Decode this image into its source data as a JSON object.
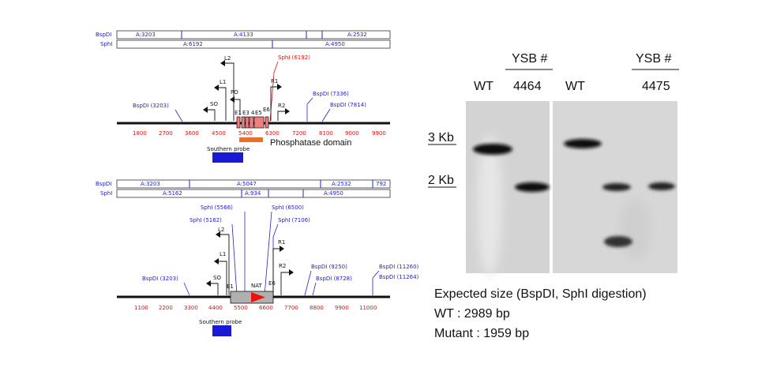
{
  "map_top": {
    "enzyme_labels": [
      "BspDI",
      "SphI"
    ],
    "bspdi_fragments": [
      "A:3203",
      "A:4133",
      "A:2532"
    ],
    "sphi_fragments": [
      "A:6192",
      "A:4950"
    ],
    "ruler": [
      "1800",
      "2700",
      "3600",
      "4500",
      "5400",
      "6300",
      "7200",
      "8100",
      "9000",
      "9900"
    ],
    "sites": {
      "bspdi_left": "BspDI (3203)",
      "sphi": "SphI (6192)",
      "bspdi_r1": "BspDI (7336)",
      "bspdi_r2": "BspDI (7814)"
    },
    "primers": {
      "l2": "L2",
      "l1": "L1",
      "so": "SO",
      "po": "PO",
      "r1": "R1",
      "r2": "R2"
    },
    "exons": {
      "e1": "E1",
      "e3": "E3",
      "e4": "4",
      "e5": "E5",
      "e6": "E6"
    },
    "domain_label": "Phosphatase domain",
    "probe_label": "Southern probe"
  },
  "map_bottom": {
    "enzyme_labels": [
      "BspDI",
      "SphI"
    ],
    "bspdi_fragments": [
      "A:3203",
      "A:5047",
      "A:2532",
      "792"
    ],
    "sphi_fragments": [
      "A:5162",
      "A:934",
      "A:4950"
    ],
    "ruler": [
      "1100",
      "2200",
      "3300",
      "4400",
      "5500",
      "6600",
      "7700",
      "8800",
      "9900",
      "11000"
    ],
    "sites": {
      "bspdi_left": "BspDI (3203)",
      "sphi_5566": "SphI (5566)",
      "sphi_5162": "SphI (5162)",
      "sphi_6500": "SphI (6500)",
      "sphi_7106": "SphI (7106)",
      "bspdi_9250": "BspDI (9250)",
      "bspdi_8728": "BspDI (8728)",
      "bspdi_11260": "BspDI (11260)",
      "bspdi_11264": "BspDI (11264)"
    },
    "primers": {
      "l2": "L2",
      "l1": "L1",
      "so": "SO",
      "r1": "R1",
      "r2": "R2"
    },
    "exons": {
      "e1": "E1",
      "e6": "E6"
    },
    "nat_label": "NAT",
    "probe_label": "Southern probe"
  },
  "blot": {
    "ysb_label_1": "YSB #",
    "ysb_label_2": "YSB #",
    "lanes": [
      "WT",
      "4464",
      "WT",
      "4475"
    ],
    "marker_3kb": "3 Kb",
    "marker_2kb": "2 Kb"
  },
  "expected": {
    "line1": "Expected size (BspDI, SphI digestion)",
    "line2": "WT : 2989 bp",
    "line3": "Mutant : 1959 bp"
  },
  "colors": {
    "blue": "#2222cc",
    "red": "#dd1111",
    "probe": "#1a1ad6",
    "domain": "#e8702a",
    "exon": "#f08080",
    "nat_arrow": "#ee1111"
  }
}
